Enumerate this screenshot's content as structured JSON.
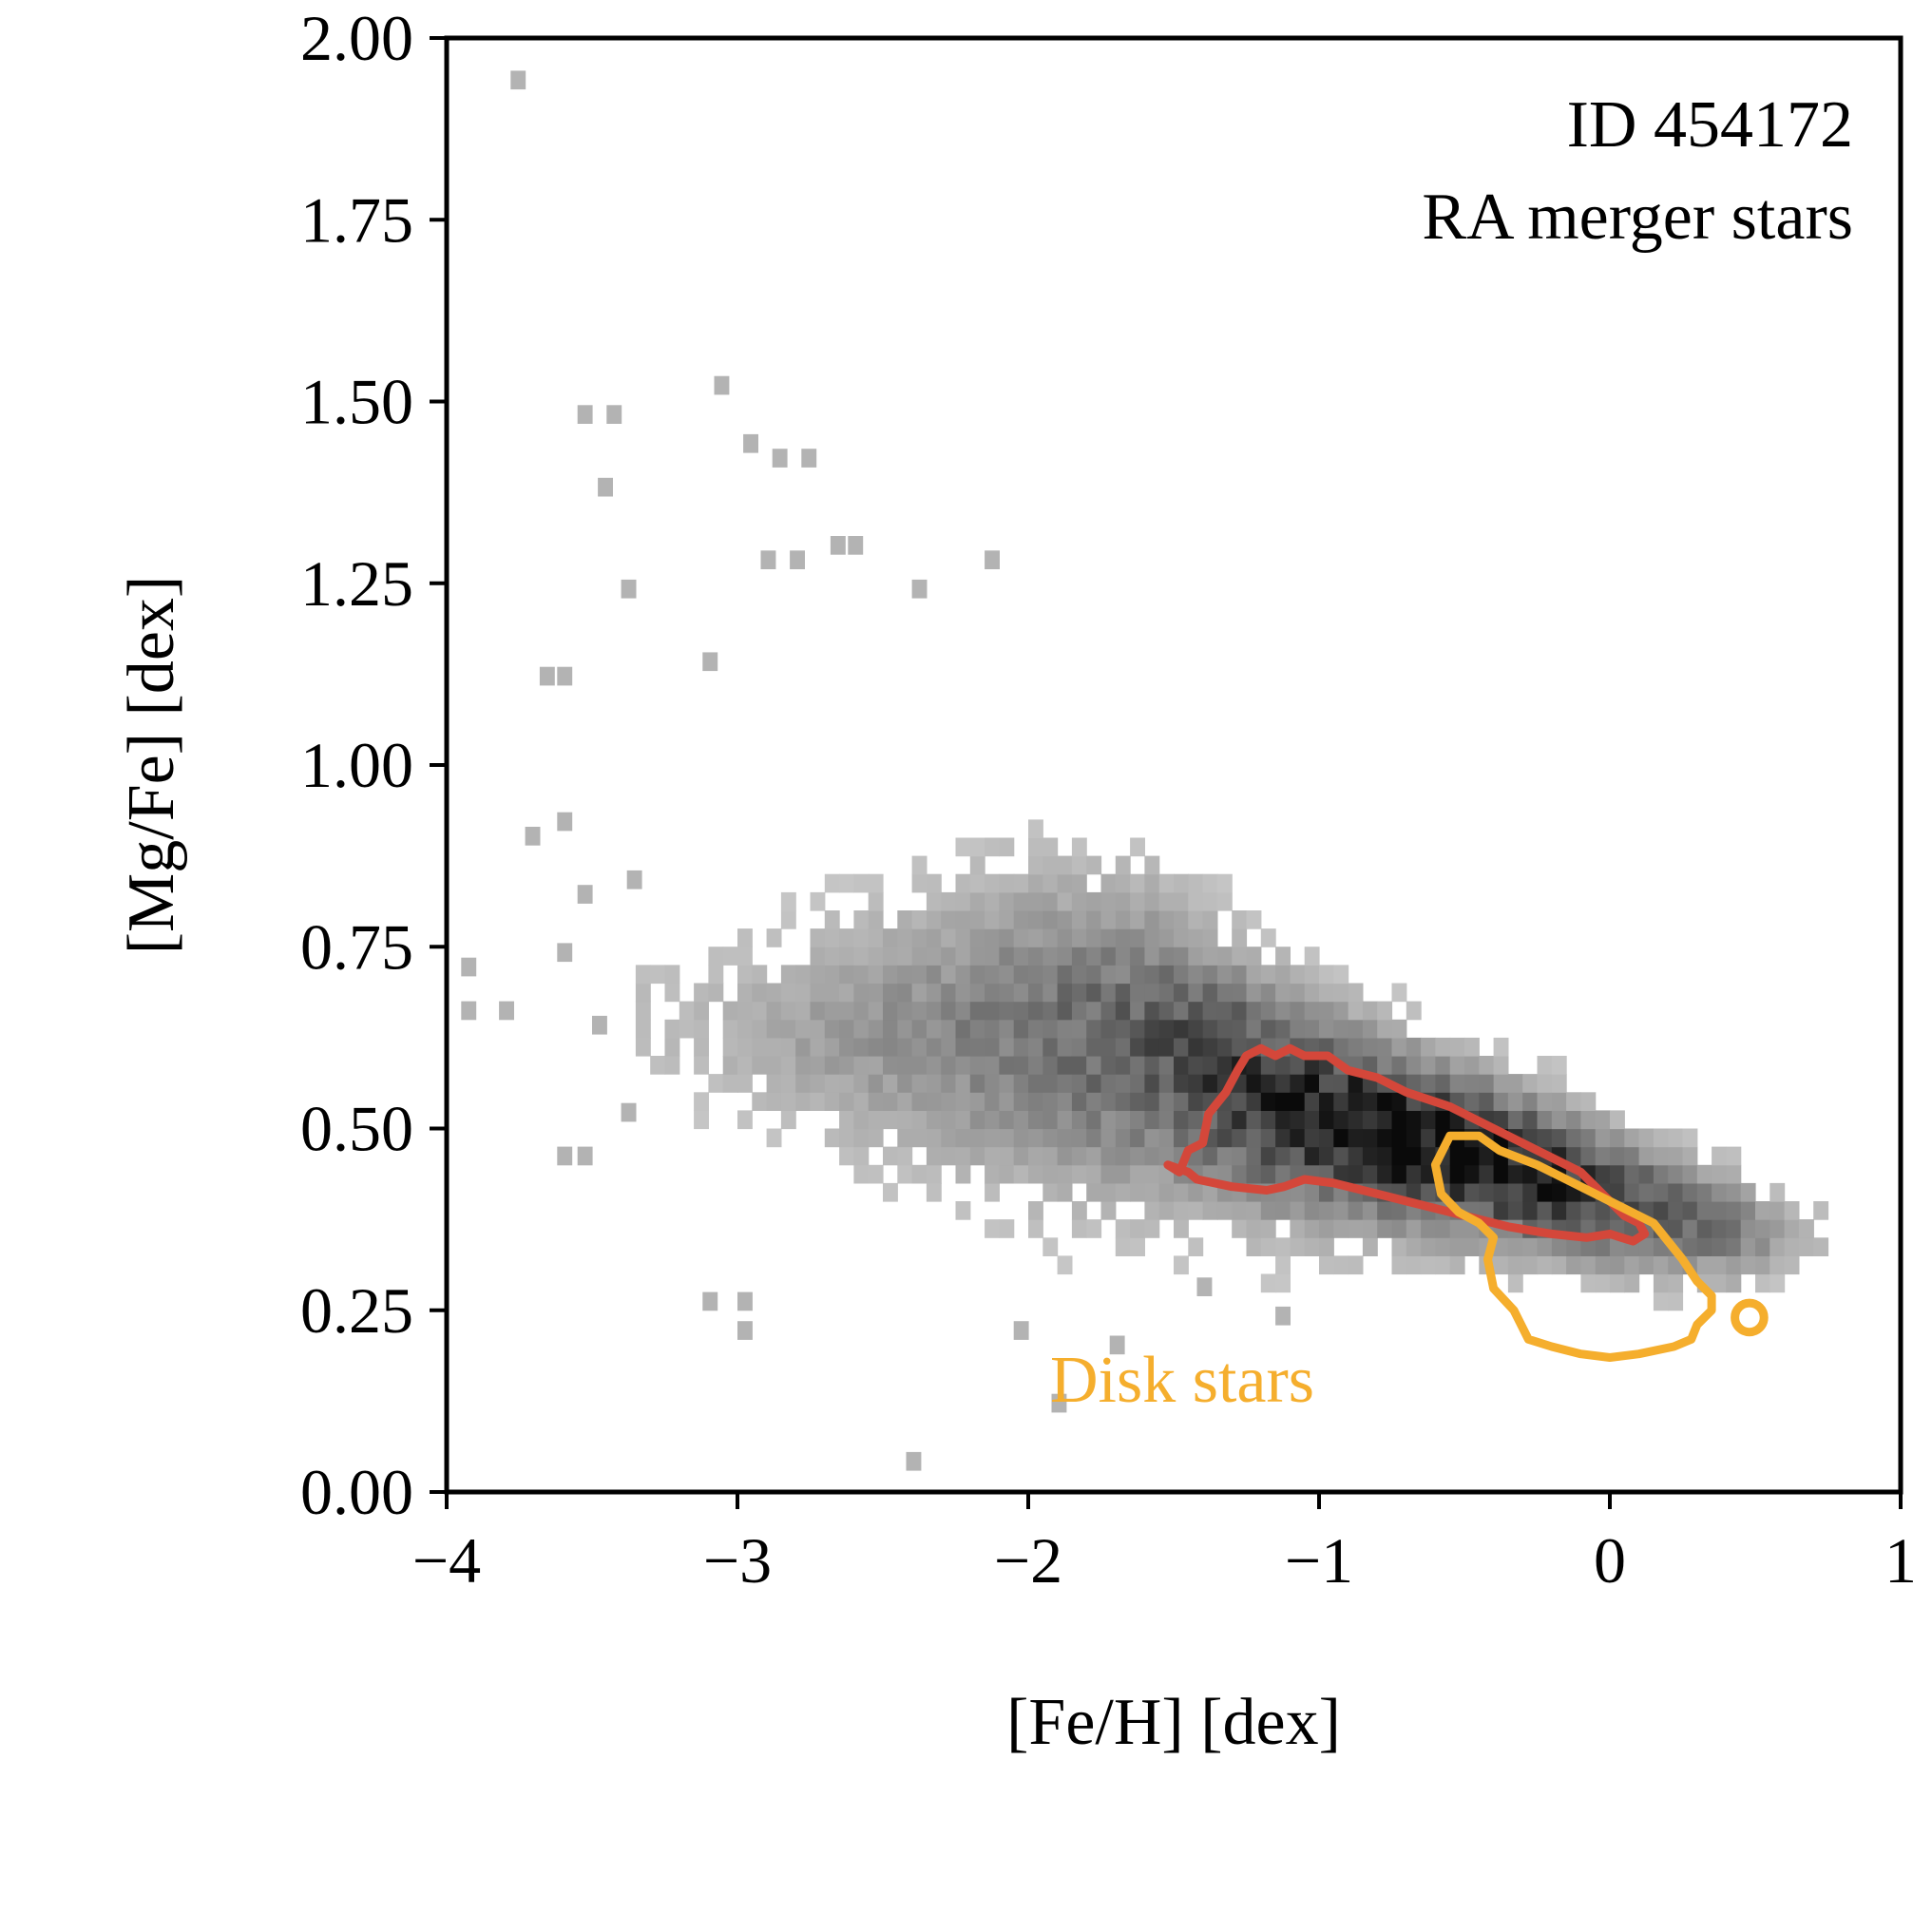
{
  "chart_data": {
    "type": "heatmap",
    "title": "",
    "xlabel": "[Fe/H] [dex]",
    "ylabel": "[Mg/Fe] [dex]",
    "xlim": [
      -4,
      1
    ],
    "ylim": [
      0,
      2
    ],
    "xticks": [
      {
        "value": -4,
        "label": "−4"
      },
      {
        "value": -3,
        "label": "−3"
      },
      {
        "value": -2,
        "label": "−2"
      },
      {
        "value": -1,
        "label": "−1"
      },
      {
        "value": 0,
        "label": "0"
      },
      {
        "value": 1,
        "label": "1"
      }
    ],
    "yticks": [
      {
        "value": 0,
        "label": "0.00"
      },
      {
        "value": 0.25,
        "label": "0.25"
      },
      {
        "value": 0.5,
        "label": "0.50"
      },
      {
        "value": 0.75,
        "label": "0.75"
      },
      {
        "value": 1.0,
        "label": "1.00"
      },
      {
        "value": 1.25,
        "label": "1.25"
      },
      {
        "value": 1.5,
        "label": "1.50"
      },
      {
        "value": 1.75,
        "label": "1.75"
      },
      {
        "value": 2.0,
        "label": "2.00"
      }
    ],
    "grid": false,
    "annotations": [
      {
        "text": "ID 454172",
        "position": "top-right"
      },
      {
        "text": "RA merger stars",
        "position": "top-right"
      },
      {
        "text": "Disk stars",
        "color": "#f5ae2d",
        "position": "bottom-center"
      }
    ],
    "histogram": {
      "bin_width_feh": 0.05,
      "bin_width_mgfe": 0.025,
      "colormap": "greys",
      "ridge": [
        {
          "feh": -3.2,
          "mgfe": 0.63,
          "wmgfe": 0.08,
          "density": 0.1
        },
        {
          "feh": -2.8,
          "mgfe": 0.62,
          "wmgfe": 0.1,
          "density": 0.22
        },
        {
          "feh": -2.4,
          "mgfe": 0.62,
          "wmgfe": 0.12,
          "density": 0.33
        },
        {
          "feh": -2.0,
          "mgfe": 0.62,
          "wmgfe": 0.14,
          "density": 0.45
        },
        {
          "feh": -1.6,
          "mgfe": 0.6,
          "wmgfe": 0.13,
          "density": 0.6
        },
        {
          "feh": -1.2,
          "mgfe": 0.53,
          "wmgfe": 0.1,
          "density": 0.82
        },
        {
          "feh": -0.8,
          "mgfe": 0.48,
          "wmgfe": 0.08,
          "density": 1.0
        },
        {
          "feh": -0.4,
          "mgfe": 0.44,
          "wmgfe": 0.07,
          "density": 0.95
        },
        {
          "feh": 0.0,
          "mgfe": 0.39,
          "wmgfe": 0.06,
          "density": 0.72
        },
        {
          "feh": 0.4,
          "mgfe": 0.35,
          "wmgfe": 0.05,
          "density": 0.42
        },
        {
          "feh": 0.65,
          "mgfe": 0.34,
          "wmgfe": 0.03,
          "density": 0.15
        }
      ],
      "outliers": [
        {
          "feh": -3.78,
          "mgfe": 1.93
        },
        {
          "feh": -3.08,
          "mgfe": 1.51
        },
        {
          "feh": -3.55,
          "mgfe": 1.47
        },
        {
          "feh": -3.45,
          "mgfe": 1.47
        },
        {
          "feh": -3.48,
          "mgfe": 1.37
        },
        {
          "feh": -2.98,
          "mgfe": 1.43
        },
        {
          "feh": -2.88,
          "mgfe": 1.41
        },
        {
          "feh": -2.78,
          "mgfe": 1.41
        },
        {
          "feh": -3.4,
          "mgfe": 1.23
        },
        {
          "feh": -2.92,
          "mgfe": 1.27
        },
        {
          "feh": -2.82,
          "mgfe": 1.27
        },
        {
          "feh": -2.68,
          "mgfe": 1.29
        },
        {
          "feh": -2.62,
          "mgfe": 1.29
        },
        {
          "feh": -2.15,
          "mgfe": 1.27
        },
        {
          "feh": -2.4,
          "mgfe": 1.23
        },
        {
          "feh": -3.12,
          "mgfe": 1.13
        },
        {
          "feh": -3.68,
          "mgfe": 1.11
        },
        {
          "feh": -3.62,
          "mgfe": 1.11
        },
        {
          "feh": -3.62,
          "mgfe": 0.91
        },
        {
          "feh": -3.73,
          "mgfe": 0.89
        },
        {
          "feh": -3.38,
          "mgfe": 0.83
        },
        {
          "feh": -3.55,
          "mgfe": 0.81
        },
        {
          "feh": -3.95,
          "mgfe": 0.71
        },
        {
          "feh": -3.95,
          "mgfe": 0.65
        },
        {
          "feh": -3.82,
          "mgfe": 0.65
        },
        {
          "feh": -3.62,
          "mgfe": 0.73
        },
        {
          "feh": -3.5,
          "mgfe": 0.63
        },
        {
          "feh": -3.4,
          "mgfe": 0.51
        },
        {
          "feh": -3.62,
          "mgfe": 0.45
        },
        {
          "feh": -3.55,
          "mgfe": 0.45
        },
        {
          "feh": -3.0,
          "mgfe": 0.25
        },
        {
          "feh": -3.0,
          "mgfe": 0.21
        },
        {
          "feh": -3.12,
          "mgfe": 0.25
        },
        {
          "feh": -2.42,
          "mgfe": 0.03
        },
        {
          "feh": -2.05,
          "mgfe": 0.21
        },
        {
          "feh": -1.92,
          "mgfe": 0.11
        },
        {
          "feh": -1.72,
          "mgfe": 0.19
        },
        {
          "feh": -1.42,
          "mgfe": 0.27
        },
        {
          "feh": -1.15,
          "mgfe": 0.23
        },
        {
          "feh": 0.65,
          "mgfe": 0.35
        }
      ]
    },
    "contours": [
      {
        "name": "RA merger stars",
        "color": "#d4473a",
        "points": [
          [
            -1.52,
            0.45
          ],
          [
            -1.48,
            0.44
          ],
          [
            -1.45,
            0.47
          ],
          [
            -1.4,
            0.48
          ],
          [
            -1.38,
            0.52
          ],
          [
            -1.32,
            0.55
          ],
          [
            -1.28,
            0.58
          ],
          [
            -1.25,
            0.6
          ],
          [
            -1.2,
            0.61
          ],
          [
            -1.15,
            0.6
          ],
          [
            -1.1,
            0.61
          ],
          [
            -1.05,
            0.6
          ],
          [
            -0.97,
            0.6
          ],
          [
            -0.9,
            0.58
          ],
          [
            -0.8,
            0.57
          ],
          [
            -0.7,
            0.55
          ],
          [
            -0.55,
            0.53
          ],
          [
            -0.4,
            0.5
          ],
          [
            -0.25,
            0.47
          ],
          [
            -0.1,
            0.44
          ],
          [
            0.0,
            0.4
          ],
          [
            0.05,
            0.38
          ],
          [
            0.1,
            0.37
          ],
          [
            0.12,
            0.355
          ],
          [
            0.08,
            0.345
          ],
          [
            0.04,
            0.35
          ],
          [
            0.0,
            0.355
          ],
          [
            -0.08,
            0.35
          ],
          [
            -0.2,
            0.355
          ],
          [
            -0.35,
            0.365
          ],
          [
            -0.5,
            0.38
          ],
          [
            -0.65,
            0.395
          ],
          [
            -0.8,
            0.41
          ],
          [
            -0.95,
            0.425
          ],
          [
            -1.05,
            0.43
          ],
          [
            -1.12,
            0.42
          ],
          [
            -1.18,
            0.415
          ],
          [
            -1.3,
            0.42
          ],
          [
            -1.42,
            0.43
          ],
          [
            -1.45,
            0.44
          ],
          [
            -1.52,
            0.45
          ]
        ]
      },
      {
        "name": "Disk stars",
        "color": "#f5ae2d",
        "points": [
          [
            -0.6,
            0.45
          ],
          [
            -0.55,
            0.49
          ],
          [
            -0.45,
            0.49
          ],
          [
            -0.38,
            0.47
          ],
          [
            -0.25,
            0.45
          ],
          [
            -0.1,
            0.42
          ],
          [
            0.05,
            0.39
          ],
          [
            0.15,
            0.37
          ],
          [
            0.25,
            0.32
          ],
          [
            0.3,
            0.29
          ],
          [
            0.35,
            0.27
          ],
          [
            0.35,
            0.25
          ],
          [
            0.3,
            0.23
          ],
          [
            0.28,
            0.21
          ],
          [
            0.22,
            0.2
          ],
          [
            0.1,
            0.19
          ],
          [
            0.0,
            0.185
          ],
          [
            -0.1,
            0.19
          ],
          [
            -0.2,
            0.2
          ],
          [
            -0.28,
            0.21
          ],
          [
            -0.33,
            0.25
          ],
          [
            -0.4,
            0.28
          ],
          [
            -0.42,
            0.32
          ],
          [
            -0.4,
            0.35
          ],
          [
            -0.45,
            0.37
          ],
          [
            -0.52,
            0.385
          ],
          [
            -0.58,
            0.41
          ],
          [
            -0.6,
            0.45
          ]
        ],
        "island": {
          "feh": 0.48,
          "mgfe": 0.24,
          "r_feh": 0.05,
          "r_mgfe": 0.02
        }
      }
    ]
  }
}
